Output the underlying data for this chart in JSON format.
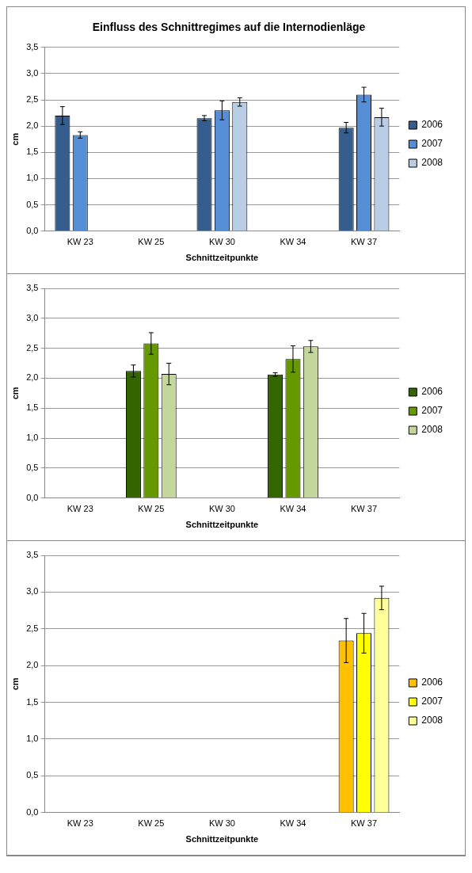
{
  "chart_data": [
    {
      "type": "bar",
      "title": "Einfluss des Schnittregimes auf die Internodienläge",
      "xlabel": "Schnittzeitpunkte",
      "ylabel": "cm",
      "categories": [
        "KW 23",
        "KW 25",
        "KW 30",
        "KW 34",
        "KW 37"
      ],
      "series": [
        {
          "name": "2006",
          "color": "#355e8e",
          "values": [
            2.2,
            null,
            2.15,
            null,
            1.97
          ],
          "errors": [
            0.17,
            null,
            0.05,
            null,
            0.1
          ]
        },
        {
          "name": "2007",
          "color": "#558ed5",
          "values": [
            1.83,
            null,
            2.3,
            null,
            2.6
          ],
          "errors": [
            0.06,
            null,
            0.18,
            null,
            0.14
          ]
        },
        {
          "name": "2008",
          "color": "#b9cde5",
          "values": [
            null,
            null,
            2.46,
            null,
            2.17
          ],
          "errors": [
            null,
            null,
            0.08,
            null,
            0.17
          ]
        }
      ],
      "ylim": [
        0,
        3.5
      ],
      "yticks": [
        {
          "value": 0,
          "label": "0,0"
        },
        {
          "value": 0.5,
          "label": "0,5"
        },
        {
          "value": 1,
          "label": "1,0"
        },
        {
          "value": 1.5,
          "label": "1,5"
        },
        {
          "value": 2,
          "label": "2,0"
        },
        {
          "value": 2.5,
          "label": "2,5"
        },
        {
          "value": 3,
          "label": "3,0"
        },
        {
          "value": 3.5,
          "label": "3,5"
        }
      ],
      "grid": "y",
      "legend": "right"
    },
    {
      "type": "bar",
      "xlabel": "Schnittzeitpunkte",
      "ylabel": "cm",
      "categories": [
        "KW 23",
        "KW 25",
        "KW 30",
        "KW 34",
        "KW 37"
      ],
      "series": [
        {
          "name": "2006",
          "color": "#336600",
          "values": [
            null,
            2.12,
            null,
            2.06,
            null
          ],
          "errors": [
            null,
            0.1,
            null,
            0.03,
            null
          ]
        },
        {
          "name": "2007",
          "color": "#669900",
          "values": [
            null,
            2.58,
            null,
            2.32,
            null
          ],
          "errors": [
            null,
            0.18,
            null,
            0.22,
            null
          ]
        },
        {
          "name": "2008",
          "color": "#c3d69b",
          "values": [
            null,
            2.07,
            null,
            2.53,
            null
          ],
          "errors": [
            null,
            0.18,
            null,
            0.1,
            null
          ]
        }
      ],
      "ylim": [
        0,
        3.5
      ],
      "yticks": [
        {
          "value": 0,
          "label": "0,0"
        },
        {
          "value": 0.5,
          "label": "0,5"
        },
        {
          "value": 1,
          "label": "1,0"
        },
        {
          "value": 1.5,
          "label": "1,5"
        },
        {
          "value": 2,
          "label": "2,0"
        },
        {
          "value": 2.5,
          "label": "2,5"
        },
        {
          "value": 3,
          "label": "3,0"
        },
        {
          "value": 3.5,
          "label": "3,5"
        }
      ],
      "grid": "y",
      "legend": "right"
    },
    {
      "type": "bar",
      "xlabel": "Schnittzeitpunkte",
      "ylabel": "cm",
      "categories": [
        "KW 23",
        "KW 25",
        "KW 30",
        "KW 34",
        "KW 37"
      ],
      "series": [
        {
          "name": "2006",
          "color": "#ffc000",
          "values": [
            null,
            null,
            null,
            null,
            2.34
          ],
          "errors": [
            null,
            null,
            null,
            null,
            0.3
          ]
        },
        {
          "name": "2007",
          "color": "#ffff00",
          "values": [
            null,
            null,
            null,
            null,
            2.44
          ],
          "errors": [
            null,
            null,
            null,
            null,
            0.27
          ]
        },
        {
          "name": "2008",
          "color": "#ffff99",
          "values": [
            null,
            null,
            null,
            null,
            2.92
          ],
          "errors": [
            null,
            null,
            null,
            null,
            0.16
          ]
        }
      ],
      "ylim": [
        0,
        3.5
      ],
      "yticks": [
        {
          "value": 0,
          "label": "0,0"
        },
        {
          "value": 0.5,
          "label": "0,5"
        },
        {
          "value": 1,
          "label": "1,0"
        },
        {
          "value": 1.5,
          "label": "1,5"
        },
        {
          "value": 2,
          "label": "2,0"
        },
        {
          "value": 2.5,
          "label": "2,5"
        },
        {
          "value": 3,
          "label": "3,0"
        },
        {
          "value": 3.5,
          "label": "3,5"
        }
      ],
      "grid": "y",
      "legend": "right"
    }
  ]
}
